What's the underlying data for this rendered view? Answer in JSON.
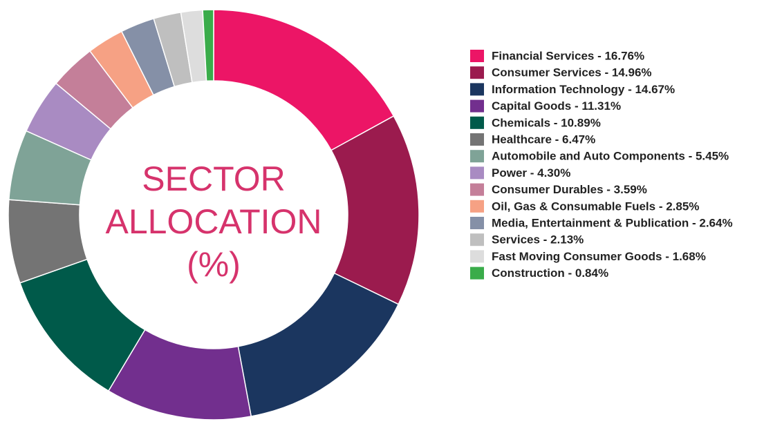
{
  "chart_data": {
    "type": "donut",
    "title": [
      "SECTOR",
      "ALLOCATION",
      "(%)"
    ],
    "categories": [
      "Financial Services - 16.76%",
      "Consumer Services - 14.96%",
      "Information Technology - 14.67%",
      "Capital Goods - 11.31%",
      "Chemicals - 10.89%",
      "Healthcare - 6.47%",
      "Automobile and Auto Components - 5.45%",
      "Power - 4.30%",
      "Consumer Durables - 3.59%",
      "Oil, Gas & Consumable Fuels - 2.85%",
      "Media, Entertainment & Publication - 2.64%",
      "Services - 2.13%",
      "Fast Moving Consumer Goods - 1.68%",
      "Construction - 0.84%"
    ],
    "values": [
      16.76,
      14.96,
      14.67,
      11.31,
      10.89,
      6.47,
      5.45,
      4.3,
      3.59,
      2.85,
      2.64,
      2.13,
      1.68,
      0.84
    ],
    "colors": [
      "#ec1566",
      "#9b1b4e",
      "#1b365f",
      "#722f8e",
      "#005a4a",
      "#747474",
      "#7fa397",
      "#a98bc2",
      "#c47f99",
      "#f6a184",
      "#8590a7",
      "#bfbfbf",
      "#dddddd",
      "#3aac4a"
    ],
    "legend": "right"
  }
}
